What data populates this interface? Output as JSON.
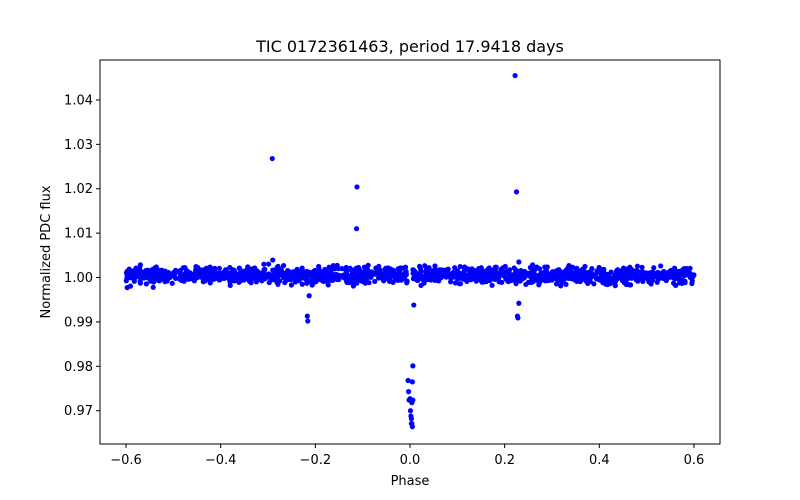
{
  "chart_data": {
    "type": "scatter",
    "title": "TIC 0172361463, period 17.9418 days",
    "xlabel": "Phase",
    "ylabel": "Normalized PDC flux",
    "xlim": [
      -0.655,
      0.655
    ],
    "ylim": [
      0.9625,
      1.049
    ],
    "grid": false,
    "marker_color": "#0000ff",
    "x_ticks": [
      -0.6,
      -0.4,
      -0.2,
      0.0,
      0.2,
      0.4,
      0.6
    ],
    "x_tick_labels": [
      "−0.6",
      "−0.4",
      "−0.2",
      "0.0",
      "0.2",
      "0.4",
      "0.6"
    ],
    "y_ticks": [
      0.97,
      0.98,
      0.99,
      1.0,
      1.01,
      1.02,
      1.03,
      1.04
    ],
    "y_tick_labels": [
      "0.97",
      "0.98",
      "0.99",
      "1.00",
      "1.01",
      "1.02",
      "1.03",
      "1.04"
    ],
    "baseline": {
      "x_range": [
        -0.6,
        0.6
      ],
      "n_points": 1500,
      "center": 1.0005,
      "scatter": 0.0012
    },
    "outliers": [
      {
        "x": -0.291,
        "y": 1.0268
      },
      {
        "x": -0.217,
        "y": 0.9913
      },
      {
        "x": -0.216,
        "y": 0.9902
      },
      {
        "x": -0.213,
        "y": 0.9959
      },
      {
        "x": -0.112,
        "y": 1.0204
      },
      {
        "x": -0.113,
        "y": 1.011
      },
      {
        "x": 0.008,
        "y": 0.9938
      },
      {
        "x": 0.222,
        "y": 1.0455
      },
      {
        "x": 0.225,
        "y": 1.0193
      },
      {
        "x": 0.227,
        "y": 0.9913
      },
      {
        "x": 0.228,
        "y": 0.9909
      },
      {
        "x": 0.23,
        "y": 0.9942
      },
      {
        "x": 0.23,
        "y": 1.0035
      }
    ],
    "transit": [
      {
        "x": -0.004,
        "y": 0.9768
      },
      {
        "x": -0.003,
        "y": 0.9743
      },
      {
        "x": -0.002,
        "y": 0.9724
      },
      {
        "x": 0.0,
        "y": 0.9727
      },
      {
        "x": 0.001,
        "y": 0.97
      },
      {
        "x": 0.002,
        "y": 0.9688
      },
      {
        "x": 0.003,
        "y": 0.9682
      },
      {
        "x": 0.004,
        "y": 0.9671
      },
      {
        "x": 0.005,
        "y": 0.9664
      },
      {
        "x": 0.004,
        "y": 0.9718
      },
      {
        "x": 0.006,
        "y": 0.9724
      },
      {
        "x": 0.005,
        "y": 0.9765
      },
      {
        "x": 0.006,
        "y": 0.9801
      },
      {
        "x": 0.003,
        "y": 0.9671
      }
    ]
  }
}
